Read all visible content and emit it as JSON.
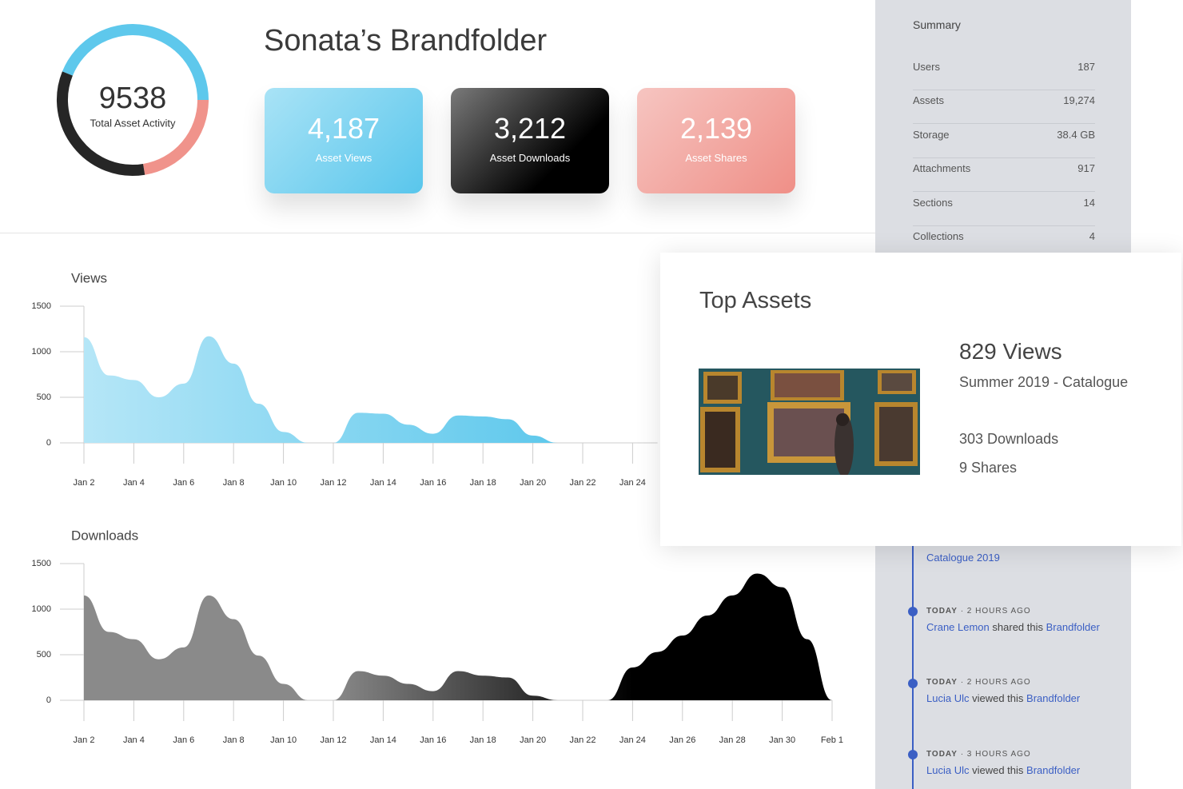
{
  "header": {
    "title": "Sonata’s Brandfolder"
  },
  "chart_data": [
    {
      "type": "donut",
      "title": "Total Asset Activity",
      "total": 9538,
      "categories": [
        "Asset Views",
        "Asset Downloads",
        "Asset Shares"
      ],
      "values": [
        4187,
        3212,
        2139
      ],
      "value_labels": [
        "4,187",
        "3,212",
        "2,139"
      ],
      "colors": [
        "#5ec8ec",
        "#262626",
        "#f0938b"
      ]
    },
    {
      "type": "area",
      "title": "Views",
      "categories": [
        "Jan 2",
        null,
        "Jan 4",
        null,
        "Jan 6",
        null,
        "Jan 8",
        null,
        "Jan 10",
        null,
        "Jan 12",
        null,
        "Jan 14",
        null,
        "Jan 16",
        null,
        "Jan 18",
        null,
        "Jan 20",
        null,
        "Jan 22",
        null,
        "Jan 24",
        null
      ],
      "values": [
        1160,
        740,
        690,
        500,
        650,
        1170,
        870,
        430,
        120,
        0,
        0,
        330,
        320,
        200,
        100,
        300,
        290,
        260,
        80,
        0,
        null,
        null,
        null,
        null
      ],
      "color": "#5ec8ec",
      "ylim": [
        0,
        1500
      ],
      "yticks": [
        0,
        500,
        1000,
        1500
      ]
    },
    {
      "type": "area",
      "title": "Downloads",
      "categories": [
        "Jan 2",
        null,
        "Jan 4",
        null,
        "Jan 6",
        null,
        "Jan 8",
        null,
        "Jan 10",
        null,
        "Jan 12",
        null,
        "Jan 14",
        null,
        "Jan 16",
        null,
        "Jan 18",
        null,
        "Jan 20",
        null,
        "Jan 22",
        null,
        "Jan 24",
        null,
        "Jan 26",
        null,
        "Jan 28",
        null,
        "Jan 30",
        null,
        "Feb 1"
      ],
      "values": [
        1150,
        750,
        670,
        450,
        580,
        1150,
        890,
        490,
        180,
        0,
        0,
        320,
        270,
        180,
        100,
        320,
        270,
        250,
        50,
        0,
        null,
        0,
        360,
        530,
        710,
        930,
        1150,
        1390,
        1240,
        670,
        0
      ],
      "color": "#000000",
      "ylim": [
        0,
        1500
      ],
      "yticks": [
        0,
        500,
        1000,
        1500
      ]
    }
  ],
  "summary": {
    "title": "Summary",
    "rows": [
      [
        "Users",
        "187"
      ],
      [
        "Assets",
        "19,274"
      ],
      [
        "Storage",
        "38.4 GB"
      ],
      [
        "Attachments",
        "917"
      ],
      [
        "Sections",
        "14"
      ],
      [
        "Collections",
        "4"
      ]
    ]
  },
  "top_assets": {
    "title": "Top Assets",
    "views": "829 Views",
    "name": "Summer 2019 - Catalogue",
    "downloads": "303 Downloads",
    "shares": "9 Shares"
  },
  "activity": {
    "partial_link": "Catalogue 2019",
    "items": [
      {
        "day": "TODAY",
        "ago": "· 2 HOURS AGO",
        "user": "Crane Lemon",
        "action": "shared this",
        "target": "Brandfolder"
      },
      {
        "day": "TODAY",
        "ago": "· 2 HOURS AGO",
        "user": "Lucia Ulc",
        "action": "viewed this",
        "target": "Brandfolder"
      },
      {
        "day": "TODAY",
        "ago": "· 3 HOURS AGO",
        "user": "Lucia Ulc",
        "action": "viewed this",
        "target": "Brandfolder"
      }
    ]
  }
}
